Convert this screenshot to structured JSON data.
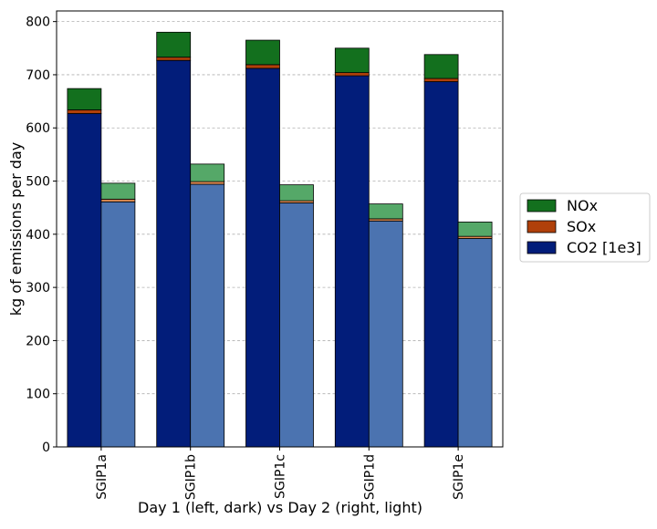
{
  "chart_data": {
    "type": "bar",
    "stacked": true,
    "grouping": "two bars per category (left = Day 1, right = Day 2)",
    "categories": [
      "SGIP1a",
      "SGIP1b",
      "SGIP1c",
      "SGIP1d",
      "SGIP1e"
    ],
    "xlabel": "Day 1 (left, dark) vs Day 2 (right, light)",
    "ylabel": "kg of emissions per day",
    "ylim": [
      0,
      820
    ],
    "yticks": [
      0,
      100,
      200,
      300,
      400,
      500,
      600,
      700,
      800
    ],
    "grid": "horizontal dashed",
    "legend_position": "right",
    "stack_order": [
      "CO2 [1e3]",
      "SOx",
      "NOx"
    ],
    "legend": [
      {
        "name": "NOx",
        "color": "#13701e"
      },
      {
        "name": "SOx",
        "color": "#b0400a"
      },
      {
        "name": "CO2 [1e3]",
        "color": "#021d7a"
      }
    ],
    "series": [
      {
        "name": "CO2 [1e3]",
        "day1_color": "#021d7a",
        "day2_color": "#4b73b0",
        "day1": [
          627,
          727,
          712,
          698,
          687
        ],
        "day2": [
          461,
          494,
          459,
          425,
          392
        ]
      },
      {
        "name": "SOx",
        "day1_color": "#b0400a",
        "day2_color": "#df8c52",
        "day1": [
          7,
          6,
          7,
          6,
          6
        ],
        "day2": [
          5,
          5,
          4,
          4,
          4
        ]
      },
      {
        "name": "NOx",
        "day1_color": "#13701e",
        "day2_color": "#55a868",
        "day1": [
          40,
          47,
          46,
          46,
          45
        ],
        "day2": [
          30,
          33,
          30,
          28,
          27
        ]
      }
    ]
  }
}
